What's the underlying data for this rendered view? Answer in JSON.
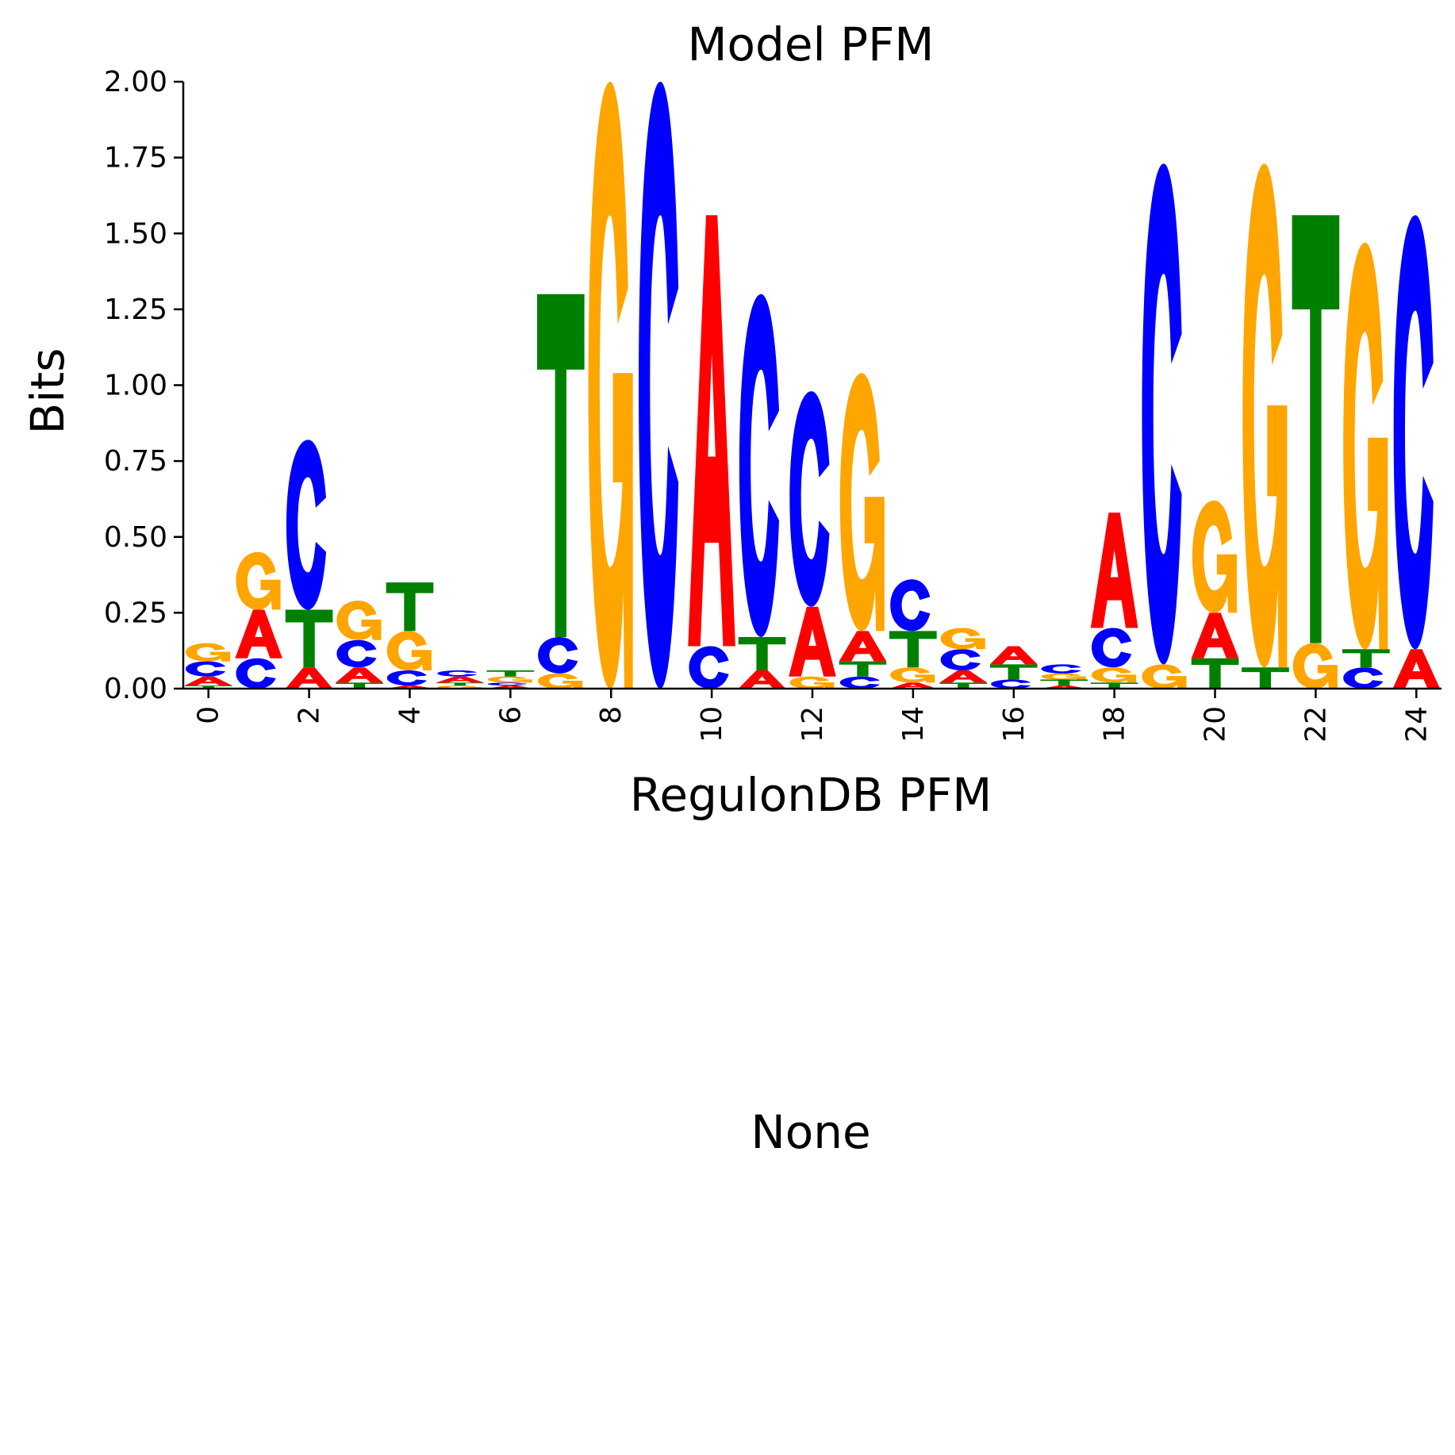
{
  "chart_data": {
    "type": "sequence-logo",
    "title": "Model PFM",
    "xlabel": "RegulonDB PFM",
    "ylabel": "Bits",
    "ylim": [
      0,
      2
    ],
    "xlim": [
      -0.5,
      24.5
    ],
    "y_ticks": [
      "0.00",
      "0.25",
      "0.50",
      "0.75",
      "1.00",
      "1.25",
      "1.50",
      "1.75",
      "2.00"
    ],
    "x_ticks": [
      "0",
      "2",
      "4",
      "6",
      "8",
      "10",
      "12",
      "14",
      "16",
      "18",
      "20",
      "22",
      "24"
    ],
    "colors": {
      "A": "#ff0000",
      "C": "#0000ff",
      "G": "#ffa500",
      "T": "#008000"
    },
    "positions": [
      [
        [
          "T",
          0.01
        ],
        [
          "A",
          0.03
        ],
        [
          "C",
          0.05
        ],
        [
          "G",
          0.06
        ]
      ],
      [
        [
          "C",
          0.1
        ],
        [
          "A",
          0.16
        ],
        [
          "G",
          0.19
        ]
      ],
      [
        [
          "A",
          0.07
        ],
        [
          "T",
          0.19
        ],
        [
          "C",
          0.56
        ]
      ],
      [
        [
          "T",
          0.02
        ],
        [
          "A",
          0.05
        ],
        [
          "C",
          0.09
        ],
        [
          "G",
          0.13
        ]
      ],
      [
        [
          "A",
          0.01
        ],
        [
          "C",
          0.05
        ],
        [
          "G",
          0.13
        ],
        [
          "T",
          0.16
        ]
      ],
      [
        [
          "G",
          0.01
        ],
        [
          "T",
          0.01
        ],
        [
          "A",
          0.02
        ],
        [
          "C",
          0.02
        ]
      ],
      [
        [
          "A",
          0.01
        ],
        [
          "C",
          0.01
        ],
        [
          "G",
          0.02
        ],
        [
          "T",
          0.02
        ]
      ],
      [
        [
          "G",
          0.05
        ],
        [
          "C",
          0.12
        ],
        [
          "T",
          1.13
        ]
      ],
      [
        [
          "G",
          2.0
        ]
      ],
      [
        [
          "C",
          2.0
        ]
      ],
      [
        [
          "C",
          0.14
        ],
        [
          "A",
          1.42
        ]
      ],
      [
        [
          "A",
          0.06
        ],
        [
          "T",
          0.11
        ],
        [
          "C",
          1.13
        ]
      ],
      [
        [
          "G",
          0.04
        ],
        [
          "A",
          0.23
        ],
        [
          "C",
          0.71
        ]
      ],
      [
        [
          "C",
          0.04
        ],
        [
          "T",
          0.05
        ],
        [
          "A",
          0.1
        ],
        [
          "G",
          0.85
        ]
      ],
      [
        [
          "A",
          0.02
        ],
        [
          "G",
          0.05
        ],
        [
          "T",
          0.12
        ],
        [
          "C",
          0.17
        ]
      ],
      [
        [
          "T",
          0.02
        ],
        [
          "A",
          0.04
        ],
        [
          "C",
          0.07
        ],
        [
          "G",
          0.07
        ]
      ],
      [
        [
          "C",
          0.03
        ],
        [
          "T",
          0.05
        ],
        [
          "A",
          0.06
        ]
      ],
      [
        [
          "A",
          0.01
        ],
        [
          "T",
          0.02
        ],
        [
          "G",
          0.02
        ],
        [
          "C",
          0.03
        ]
      ],
      [
        [
          "T",
          0.02
        ],
        [
          "G",
          0.05
        ],
        [
          "C",
          0.13
        ],
        [
          "A",
          0.38
        ]
      ],
      [
        [
          "G",
          0.08
        ],
        [
          "C",
          1.65
        ]
      ],
      [
        [
          "T",
          0.1
        ],
        [
          "A",
          0.15
        ],
        [
          "G",
          0.37
        ]
      ],
      [
        [
          "T",
          0.07
        ],
        [
          "G",
          1.66
        ]
      ],
      [
        [
          "G",
          0.15
        ],
        [
          "T",
          1.41
        ]
      ],
      [
        [
          "C",
          0.07
        ],
        [
          "T",
          0.06
        ],
        [
          "G",
          1.34
        ]
      ],
      [
        [
          "A",
          0.13
        ],
        [
          "C",
          1.43
        ]
      ]
    ]
  },
  "lower_panel": {
    "text": "None"
  }
}
